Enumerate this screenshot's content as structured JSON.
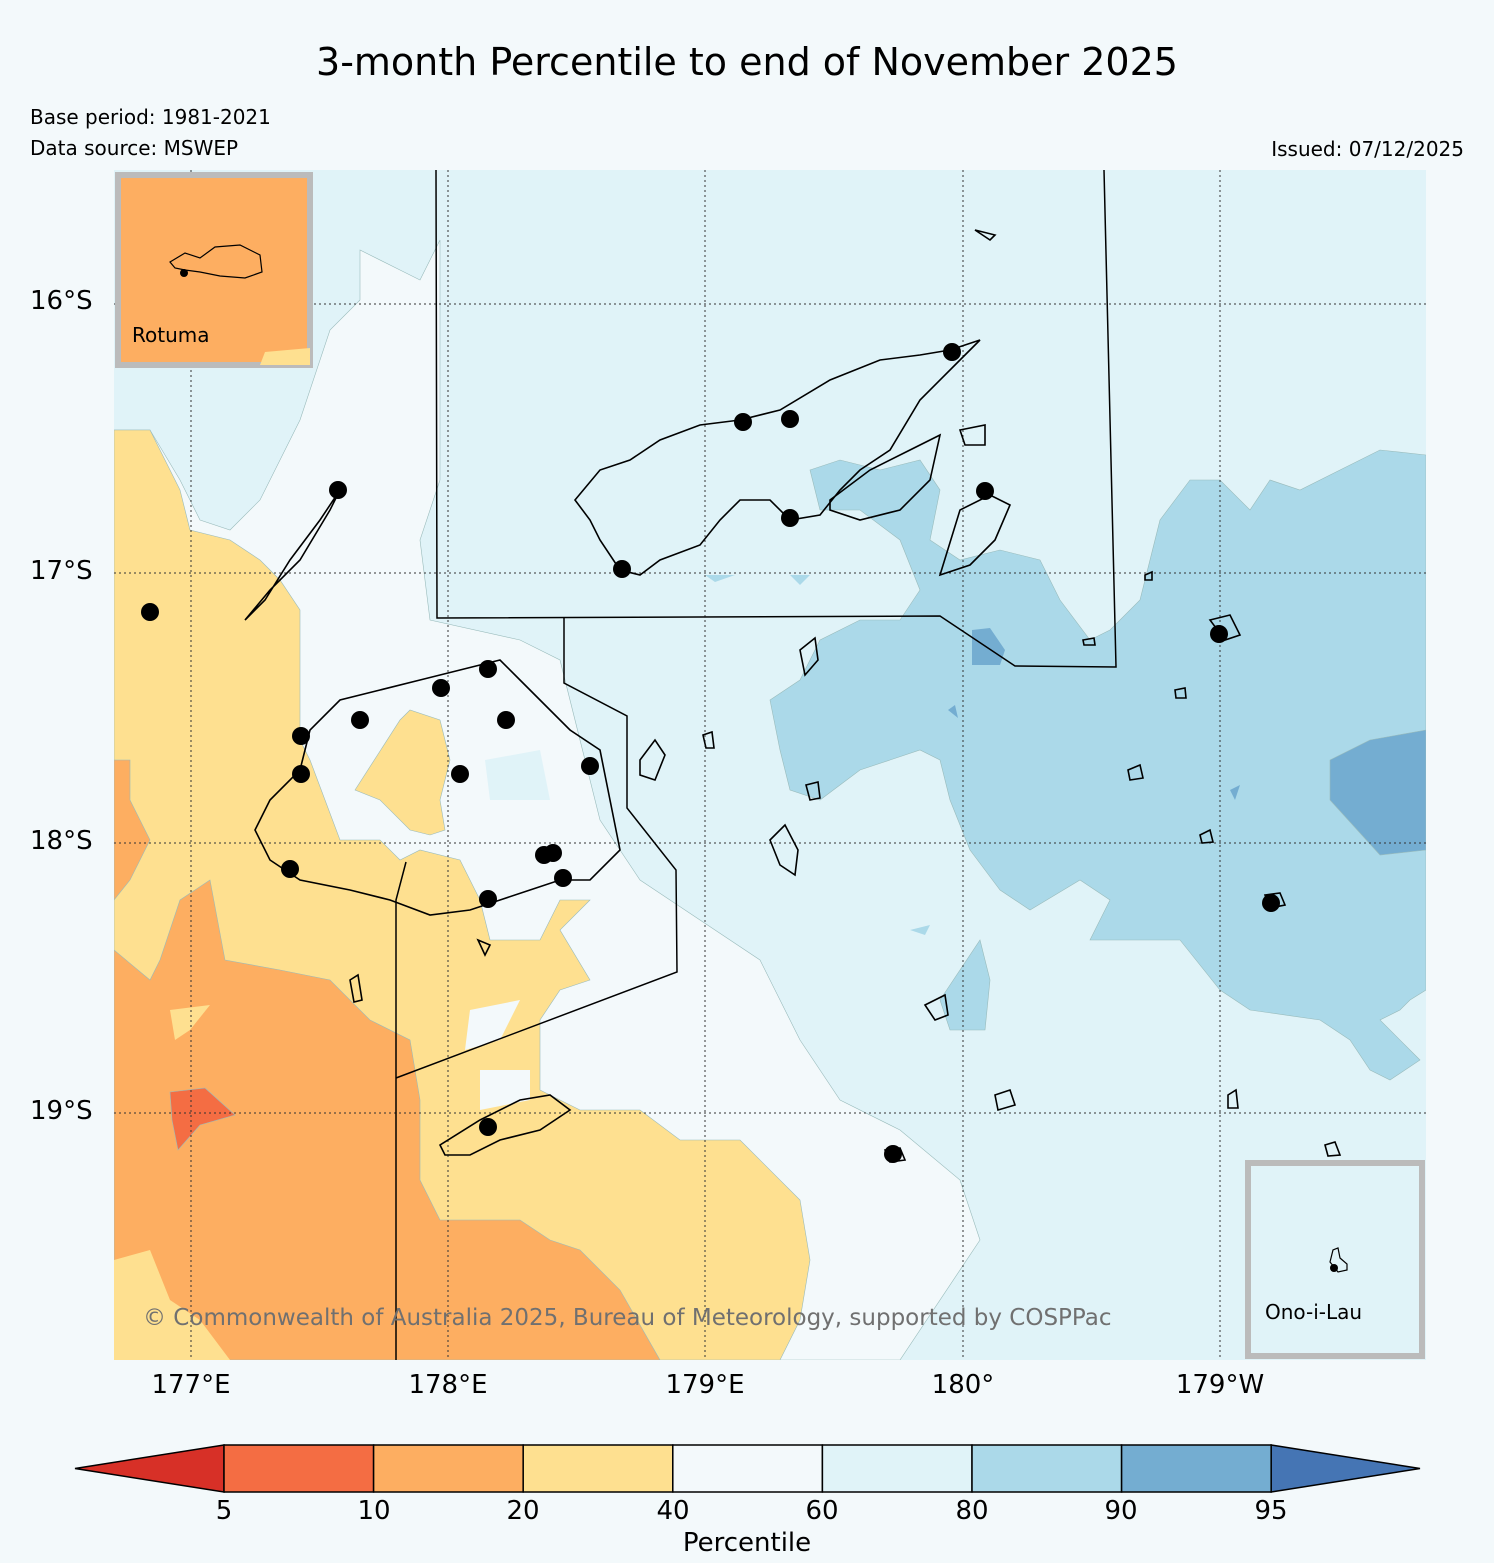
{
  "header": {
    "title": "3-month Percentile to end of November 2025",
    "base_period": "Base period: 1981-2021",
    "data_source": "Data source: MSWEP",
    "issued": "Issued: 07/12/2025"
  },
  "map": {
    "lat_labels": [
      "16°S",
      "17°S",
      "18°S",
      "19°S"
    ],
    "lon_labels": [
      "177°E",
      "178°E",
      "179°E",
      "180°",
      "179°W"
    ],
    "copyright": "© Commonwealth of Australia 2025, Bureau of Meteorology, supported by COSPPac",
    "insets": [
      {
        "label": "Rotuma"
      },
      {
        "label": "Ono-i-Lau"
      }
    ]
  },
  "legend": {
    "title": "Percentile",
    "ticks": [
      "5",
      "10",
      "20",
      "40",
      "60",
      "80",
      "90",
      "95"
    ],
    "colors": {
      "below_5": "#d73027",
      "5_10": "#f46d43",
      "10_20": "#fdae61",
      "20_40": "#fee090",
      "40_60": "#f3f9fb",
      "60_80": "#e0f3f8",
      "80_90": "#abd9e9",
      "90_95": "#74add1",
      "above_95": "#4575b4"
    }
  }
}
